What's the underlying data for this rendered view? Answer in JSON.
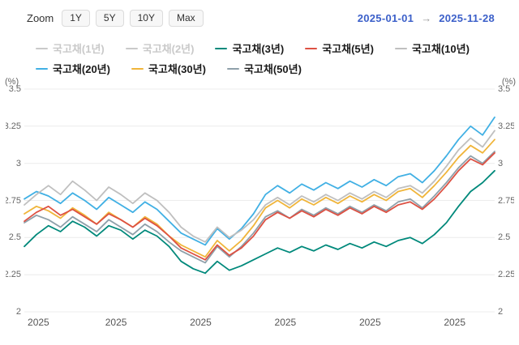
{
  "toolbar": {
    "zoom_label": "Zoom",
    "range_buttons": [
      "1Y",
      "5Y",
      "10Y",
      "Max"
    ],
    "date_from": "2025-01-01",
    "date_separator": "→",
    "date_to": "2025-11-28"
  },
  "legend": {
    "inactive_color": "#c9c9c9",
    "active_text_color": "#1a1a1a",
    "inactive_text_color": "#c9c9c9"
  },
  "chart_data": {
    "type": "line",
    "title": "",
    "x_start": "2025-01-01",
    "x_end": "2025-11-28",
    "y_axis": {
      "unit": "(%)",
      "min": 2.0,
      "max": 3.5,
      "ticks": [
        2,
        2.25,
        2.5,
        2.75,
        3,
        3.25,
        3.5
      ],
      "grid": true
    },
    "x_axis": {
      "tick_labels": [
        "2025",
        "2025",
        "2025",
        "2025",
        "2025",
        "2025"
      ],
      "tick_positions": [
        0.03,
        0.195,
        0.375,
        0.555,
        0.735,
        0.915
      ]
    },
    "series": [
      {
        "name": "국고채(1년)",
        "color": "#c9c9c9",
        "visible": false,
        "values": []
      },
      {
        "name": "국고채(2년)",
        "color": "#c9c9c9",
        "visible": false,
        "values": []
      },
      {
        "name": "국고채(3년)",
        "color": "#00897b",
        "visible": true,
        "values": [
          2.44,
          2.52,
          2.58,
          2.54,
          2.61,
          2.57,
          2.51,
          2.58,
          2.55,
          2.49,
          2.55,
          2.51,
          2.44,
          2.34,
          2.29,
          2.26,
          2.34,
          2.28,
          2.31,
          2.35,
          2.39,
          2.43,
          2.4,
          2.44,
          2.41,
          2.45,
          2.42,
          2.46,
          2.43,
          2.47,
          2.44,
          2.48,
          2.5,
          2.46,
          2.52,
          2.6,
          2.71,
          2.81,
          2.87,
          2.95
        ]
      },
      {
        "name": "국고채(5년)",
        "color": "#dd5143",
        "visible": true,
        "values": [
          2.61,
          2.67,
          2.71,
          2.65,
          2.69,
          2.64,
          2.59,
          2.66,
          2.62,
          2.57,
          2.63,
          2.58,
          2.51,
          2.43,
          2.39,
          2.35,
          2.45,
          2.38,
          2.43,
          2.51,
          2.62,
          2.67,
          2.63,
          2.68,
          2.64,
          2.69,
          2.65,
          2.7,
          2.66,
          2.71,
          2.67,
          2.72,
          2.74,
          2.69,
          2.76,
          2.85,
          2.95,
          3.03,
          2.99,
          3.07
        ]
      },
      {
        "name": "국고채(10년)",
        "color": "#bfbfbf",
        "visible": true,
        "values": [
          2.72,
          2.79,
          2.85,
          2.79,
          2.88,
          2.82,
          2.75,
          2.84,
          2.79,
          2.73,
          2.8,
          2.75,
          2.67,
          2.57,
          2.51,
          2.47,
          2.57,
          2.5,
          2.55,
          2.62,
          2.72,
          2.77,
          2.72,
          2.78,
          2.74,
          2.79,
          2.75,
          2.8,
          2.76,
          2.81,
          2.77,
          2.83,
          2.85,
          2.8,
          2.88,
          2.98,
          3.09,
          3.17,
          3.11,
          3.22
        ]
      },
      {
        "name": "국고채(20년)",
        "color": "#41b0e4",
        "visible": true,
        "values": [
          2.76,
          2.81,
          2.78,
          2.73,
          2.8,
          2.75,
          2.69,
          2.77,
          2.72,
          2.67,
          2.74,
          2.69,
          2.61,
          2.53,
          2.49,
          2.45,
          2.56,
          2.49,
          2.56,
          2.66,
          2.79,
          2.85,
          2.8,
          2.86,
          2.82,
          2.87,
          2.83,
          2.88,
          2.84,
          2.89,
          2.85,
          2.91,
          2.93,
          2.87,
          2.95,
          3.05,
          3.16,
          3.25,
          3.19,
          3.31
        ]
      },
      {
        "name": "국고채(30년)",
        "color": "#f0b53a",
        "visible": true,
        "values": [
          2.66,
          2.71,
          2.68,
          2.63,
          2.7,
          2.65,
          2.59,
          2.67,
          2.62,
          2.57,
          2.64,
          2.59,
          2.51,
          2.45,
          2.41,
          2.37,
          2.48,
          2.41,
          2.48,
          2.58,
          2.7,
          2.75,
          2.7,
          2.76,
          2.72,
          2.77,
          2.73,
          2.78,
          2.74,
          2.79,
          2.75,
          2.81,
          2.83,
          2.77,
          2.85,
          2.94,
          3.04,
          3.12,
          3.07,
          3.16
        ]
      },
      {
        "name": "국고채(50년)",
        "color": "#8fa0aa",
        "visible": true,
        "values": [
          2.6,
          2.65,
          2.62,
          2.57,
          2.64,
          2.59,
          2.54,
          2.62,
          2.57,
          2.52,
          2.59,
          2.54,
          2.47,
          2.41,
          2.37,
          2.33,
          2.44,
          2.37,
          2.44,
          2.53,
          2.64,
          2.68,
          2.63,
          2.69,
          2.65,
          2.7,
          2.66,
          2.71,
          2.67,
          2.72,
          2.68,
          2.74,
          2.76,
          2.7,
          2.78,
          2.87,
          2.97,
          3.05,
          3.0,
          3.08
        ]
      }
    ]
  }
}
